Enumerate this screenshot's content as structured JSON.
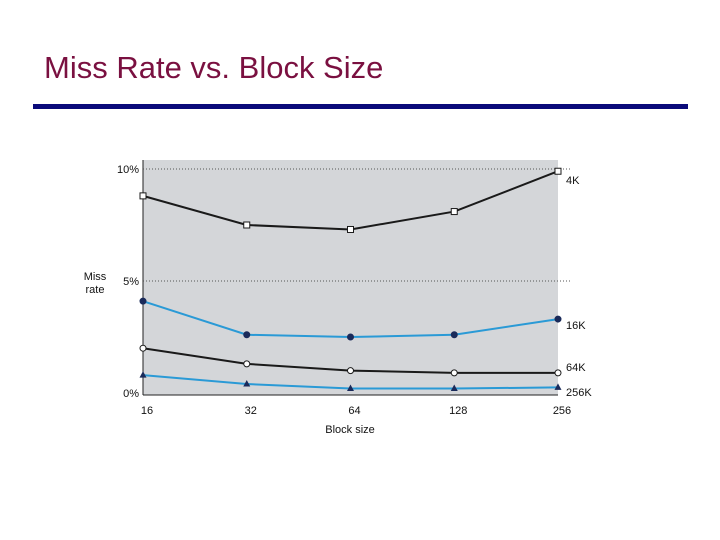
{
  "slide": {
    "title": "Miss Rate vs. Block Size"
  },
  "chart_data": {
    "type": "line",
    "title": "",
    "xlabel": "Block size",
    "ylabel": [
      "Miss",
      "rate"
    ],
    "categories": [
      "16",
      "32",
      "64",
      "128",
      "256"
    ],
    "yticks": [
      "0%",
      "5%",
      "10%"
    ],
    "ylim": [
      0,
      10
    ],
    "grid": "dotted horizontal at 5% and 10%",
    "colors": {
      "plot_bg": "#d4d6d9",
      "black_series": "#1a1a1a",
      "blue_series": "#2a9ad6",
      "grid": "#555555"
    },
    "series": [
      {
        "name": "4K",
        "marker": "square",
        "color": "#1a1a1a",
        "values": [
          8.8,
          7.5,
          7.3,
          8.1,
          9.9
        ]
      },
      {
        "name": "16K",
        "marker": "dot",
        "color": "#2a9ad6",
        "values": [
          4.1,
          2.6,
          2.5,
          2.6,
          3.3
        ]
      },
      {
        "name": "64K",
        "marker": "circle",
        "color": "#1a1a1a",
        "values": [
          2.0,
          1.3,
          1.0,
          0.9,
          0.9
        ]
      },
      {
        "name": "256K",
        "marker": "triangle",
        "color": "#2a9ad6",
        "values": [
          0.8,
          0.4,
          0.2,
          0.2,
          0.25
        ]
      }
    ]
  }
}
